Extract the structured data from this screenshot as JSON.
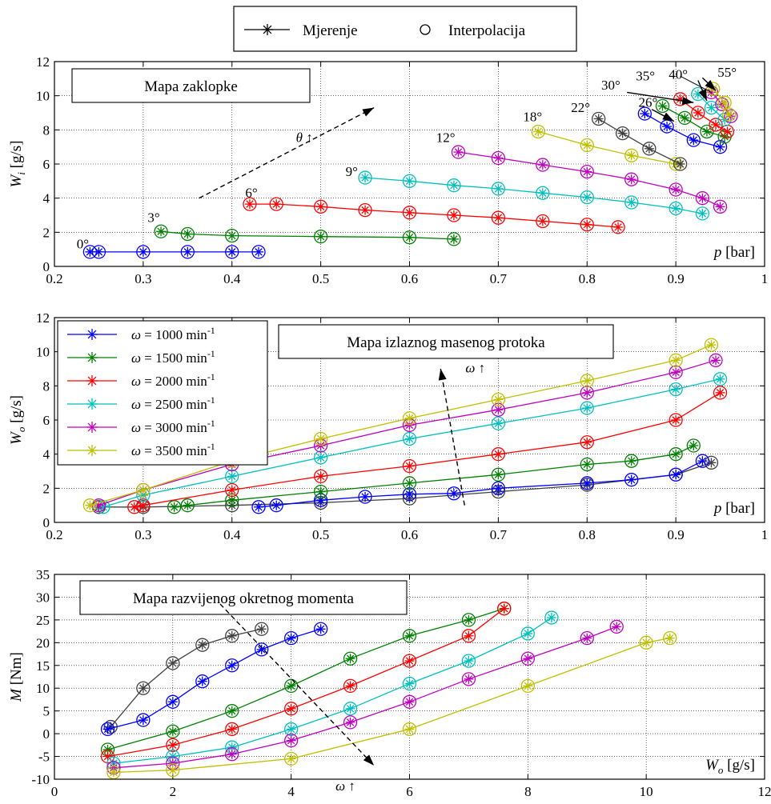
{
  "colors": {
    "1000": "#0000ff",
    "1500": "#008000",
    "2000": "#ff0000",
    "2500": "#00bfbf",
    "3000": "#bf00bf",
    "3500": "#bfbf00",
    "gray": "#404040"
  },
  "top_legend": {
    "measurement": "Mjerenje",
    "interpolation": "Interpolacija"
  },
  "chart_data": [
    {
      "type": "line",
      "title": "Mapa zaklopke",
      "ylabel_main": "W",
      "ylabel_sub": "i",
      "ylabel_unit": "[g/s]",
      "xlabel_main": "p",
      "xlabel_unit": "[bar]",
      "xlim": [
        0.2,
        1.0
      ],
      "ylim": [
        0,
        12
      ],
      "xticks": [
        0.2,
        0.3,
        0.4,
        0.5,
        0.6,
        0.7,
        0.8,
        0.9,
        1
      ],
      "yticks": [
        0,
        2,
        4,
        6,
        8,
        10,
        12
      ],
      "grid": true,
      "annotations": [
        {
          "text": "0°",
          "x": 0.225,
          "y": 1.05
        },
        {
          "text": "3°",
          "x": 0.305,
          "y": 2.6
        },
        {
          "text": "6°",
          "x": 0.415,
          "y": 4.05
        },
        {
          "text": "9°",
          "x": 0.528,
          "y": 5.3
        },
        {
          "text": "12°",
          "x": 0.63,
          "y": 7.3
        },
        {
          "text": "18°",
          "x": 0.728,
          "y": 8.5
        },
        {
          "text": "22°",
          "x": 0.782,
          "y": 9.05
        },
        {
          "text": "26°",
          "x": 0.858,
          "y": 9.35
        },
        {
          "text": "30°",
          "x": 0.816,
          "y": 10.35
        },
        {
          "text": "35°",
          "x": 0.855,
          "y": 10.9
        },
        {
          "text": "40°",
          "x": 0.892,
          "y": 11.0
        },
        {
          "text": "55°",
          "x": 0.947,
          "y": 11.1
        },
        {
          "text": "θ ↑",
          "x": 0.472,
          "y": 7.3
        }
      ],
      "series": [
        {
          "color": "1000",
          "x": [
            0.24,
            0.25,
            0.3,
            0.35,
            0.4,
            0.43
          ],
          "y": [
            0.85,
            0.85,
            0.85,
            0.85,
            0.85,
            0.85
          ]
        },
        {
          "color": "1500",
          "x": [
            0.32,
            0.35,
            0.4,
            0.5,
            0.6,
            0.65
          ],
          "y": [
            2.05,
            1.9,
            1.8,
            1.75,
            1.7,
            1.6
          ]
        },
        {
          "color": "2000",
          "x": [
            0.42,
            0.45,
            0.5,
            0.55,
            0.6,
            0.65,
            0.7,
            0.75,
            0.8,
            0.835
          ],
          "y": [
            3.65,
            3.65,
            3.5,
            3.3,
            3.15,
            3.0,
            2.85,
            2.65,
            2.45,
            2.3
          ]
        },
        {
          "color": "2500",
          "x": [
            0.55,
            0.6,
            0.65,
            0.7,
            0.75,
            0.8,
            0.85,
            0.9,
            0.93
          ],
          "y": [
            5.2,
            5.0,
            4.75,
            4.55,
            4.3,
            4.05,
            3.75,
            3.4,
            3.1
          ]
        },
        {
          "color": "3000",
          "x": [
            0.655,
            0.7,
            0.75,
            0.8,
            0.85,
            0.9,
            0.93,
            0.95
          ],
          "y": [
            6.7,
            6.35,
            5.95,
            5.55,
            5.1,
            4.5,
            4.0,
            3.5
          ]
        },
        {
          "color": "3500",
          "x": [
            0.745,
            0.8,
            0.85,
            0.9
          ],
          "y": [
            7.9,
            7.1,
            6.5,
            6.0
          ]
        },
        {
          "color": "gray",
          "x": [
            0.813,
            0.84,
            0.87,
            0.905
          ],
          "y": [
            8.65,
            7.8,
            6.9,
            6.0
          ]
        },
        {
          "color": "1000",
          "x": [
            0.865,
            0.89,
            0.92,
            0.95
          ],
          "y": [
            8.95,
            8.2,
            7.4,
            7.0
          ]
        },
        {
          "color": "1500",
          "x": [
            0.885,
            0.91,
            0.935,
            0.955
          ],
          "y": [
            9.4,
            8.7,
            7.9,
            7.6
          ]
        },
        {
          "color": "2000",
          "x": [
            0.905,
            0.925,
            0.945,
            0.958
          ],
          "y": [
            9.8,
            9.0,
            8.3,
            7.9
          ]
        },
        {
          "color": "2500",
          "x": [
            0.925,
            0.94,
            0.955
          ],
          "y": [
            10.1,
            9.3,
            8.6
          ]
        },
        {
          "color": "3000",
          "x": [
            0.94,
            0.952,
            0.962
          ],
          "y": [
            10.2,
            9.5,
            8.8
          ]
        },
        {
          "color": "3500",
          "x": [
            0.942,
            0.955,
            0.96
          ],
          "y": [
            10.4,
            9.6,
            8.9
          ]
        }
      ]
    },
    {
      "type": "line",
      "title": "Mapa izlaznog masenog protoka",
      "ylabel_main": "W",
      "ylabel_sub": "o",
      "ylabel_unit": "[g/s]",
      "xlabel_main": "p",
      "xlabel_unit": "[bar]",
      "xlim": [
        0.2,
        1.0
      ],
      "ylim": [
        0,
        12
      ],
      "xticks": [
        0.2,
        0.3,
        0.4,
        0.5,
        0.6,
        0.7,
        0.8,
        0.9,
        1
      ],
      "yticks": [
        0,
        2,
        4,
        6,
        8,
        10,
        12
      ],
      "grid": true,
      "legend": [
        {
          "prefix": "ω = ",
          "value": "1000",
          "unit": " min",
          "sup": "-1",
          "color": "1000"
        },
        {
          "prefix": "ω = ",
          "value": "1500",
          "unit": " min",
          "sup": "-1",
          "color": "1500"
        },
        {
          "prefix": "ω = ",
          "value": "2000",
          "unit": " min",
          "sup": "-1",
          "color": "2000"
        },
        {
          "prefix": "ω = ",
          "value": "2500",
          "unit": " min",
          "sup": "-1",
          "color": "2500"
        },
        {
          "prefix": "ω = ",
          "value": "3000",
          "unit": " min",
          "sup": "-1",
          "color": "3000"
        },
        {
          "prefix": "ω = ",
          "value": "3500",
          "unit": " min",
          "sup": "-1",
          "color": "3500"
        }
      ],
      "annotations": [
        {
          "text": "ω ↑",
          "x": 0.663,
          "y": 8.8
        }
      ],
      "series": [
        {
          "color": "gray",
          "x": [
            0.25,
            0.3,
            0.4,
            0.5,
            0.6,
            0.7,
            0.8,
            0.9,
            0.94
          ],
          "y": [
            0.9,
            0.9,
            1.0,
            1.15,
            1.4,
            1.8,
            2.2,
            2.8,
            3.5
          ]
        },
        {
          "color": "1000",
          "x": [
            0.43,
            0.45,
            0.5,
            0.55,
            0.6,
            0.65,
            0.7,
            0.8,
            0.85,
            0.9,
            0.93
          ],
          "y": [
            0.9,
            1.0,
            1.3,
            1.5,
            1.65,
            1.7,
            2.0,
            2.3,
            2.5,
            2.8,
            3.6
          ]
        },
        {
          "color": "1500",
          "x": [
            0.335,
            0.35,
            0.4,
            0.5,
            0.6,
            0.7,
            0.8,
            0.85,
            0.9,
            0.92
          ],
          "y": [
            0.9,
            1.0,
            1.3,
            1.8,
            2.3,
            2.8,
            3.4,
            3.6,
            4.0,
            4.5
          ]
        },
        {
          "color": "2000",
          "x": [
            0.29,
            0.3,
            0.4,
            0.5,
            0.6,
            0.7,
            0.8,
            0.9,
            0.95
          ],
          "y": [
            0.9,
            1.0,
            1.9,
            2.7,
            3.3,
            4.0,
            4.7,
            6.0,
            7.6
          ]
        },
        {
          "color": "2500",
          "x": [
            0.255,
            0.3,
            0.4,
            0.5,
            0.6,
            0.7,
            0.8,
            0.9,
            0.95
          ],
          "y": [
            0.9,
            1.6,
            2.7,
            3.8,
            4.9,
            5.8,
            6.7,
            7.8,
            8.4
          ]
        },
        {
          "color": "3000",
          "x": [
            0.25,
            0.3,
            0.4,
            0.5,
            0.6,
            0.7,
            0.8,
            0.9,
            0.945
          ],
          "y": [
            1.0,
            1.9,
            3.4,
            4.5,
            5.7,
            6.6,
            7.6,
            8.8,
            9.5
          ]
        },
        {
          "color": "3500",
          "x": [
            0.24,
            0.3,
            0.4,
            0.5,
            0.6,
            0.7,
            0.8,
            0.9,
            0.94
          ],
          "y": [
            1.0,
            1.9,
            3.6,
            4.9,
            6.1,
            7.2,
            8.3,
            9.5,
            10.4
          ]
        }
      ]
    },
    {
      "type": "line",
      "title": "Mapa razvijenog okretnog momenta",
      "ylabel_main": "M",
      "ylabel_sub": "",
      "ylabel_unit": "[Nm]",
      "xlabel_main": "W",
      "xlabel_sub": "o",
      "xlabel_unit": "[g/s]",
      "xlim": [
        0,
        12
      ],
      "ylim": [
        -10,
        35
      ],
      "xticks": [
        0,
        2,
        4,
        6,
        8,
        10,
        12
      ],
      "yticks": [
        -10,
        -5,
        0,
        5,
        10,
        15,
        20,
        25,
        30,
        35
      ],
      "grid": true,
      "annotations": [
        {
          "text": "ω ↑",
          "x": 4.75,
          "y": -12.5
        }
      ],
      "series": [
        {
          "color": "gray",
          "x": [
            0.95,
            1.5,
            2.0,
            2.5,
            3.0,
            3.5
          ],
          "y": [
            1.5,
            10.0,
            15.5,
            19.5,
            21.5,
            23.0
          ]
        },
        {
          "color": "1000",
          "x": [
            0.9,
            1.5,
            2.0,
            2.5,
            3.0,
            3.5,
            4.0,
            4.5
          ],
          "y": [
            1.0,
            3.0,
            7.0,
            11.5,
            15.0,
            18.5,
            21.0,
            23.0
          ]
        },
        {
          "color": "1500",
          "x": [
            0.9,
            2.0,
            3.0,
            4.0,
            5.0,
            6.0,
            7.0,
            7.6
          ],
          "y": [
            -3.5,
            0.5,
            5.0,
            10.5,
            16.5,
            21.5,
            25.0,
            27.5
          ]
        },
        {
          "color": "2000",
          "x": [
            0.9,
            2.0,
            3.0,
            4.0,
            5.0,
            6.0,
            7.0,
            7.6
          ],
          "y": [
            -5.0,
            -2.5,
            1.0,
            5.5,
            10.5,
            16.0,
            21.5,
            27.5
          ]
        },
        {
          "color": "2500",
          "x": [
            1.0,
            2.0,
            3.0,
            4.0,
            5.0,
            6.0,
            7.0,
            8.0,
            8.4
          ],
          "y": [
            -6.5,
            -5.0,
            -3.0,
            1.0,
            5.5,
            11.0,
            16.0,
            22.0,
            25.5
          ]
        },
        {
          "color": "3000",
          "x": [
            1.0,
            2.0,
            3.0,
            4.0,
            5.0,
            6.0,
            7.0,
            8.0,
            9.0,
            9.5
          ],
          "y": [
            -7.5,
            -6.5,
            -4.5,
            -1.5,
            2.5,
            7.0,
            12.0,
            16.5,
            21.0,
            23.5
          ]
        },
        {
          "color": "3500",
          "x": [
            1.0,
            2.0,
            4.0,
            6.0,
            8.0,
            10.0,
            10.4
          ],
          "y": [
            -8.5,
            -8.0,
            -5.5,
            1.0,
            10.5,
            20.0,
            21.0
          ]
        }
      ]
    }
  ]
}
